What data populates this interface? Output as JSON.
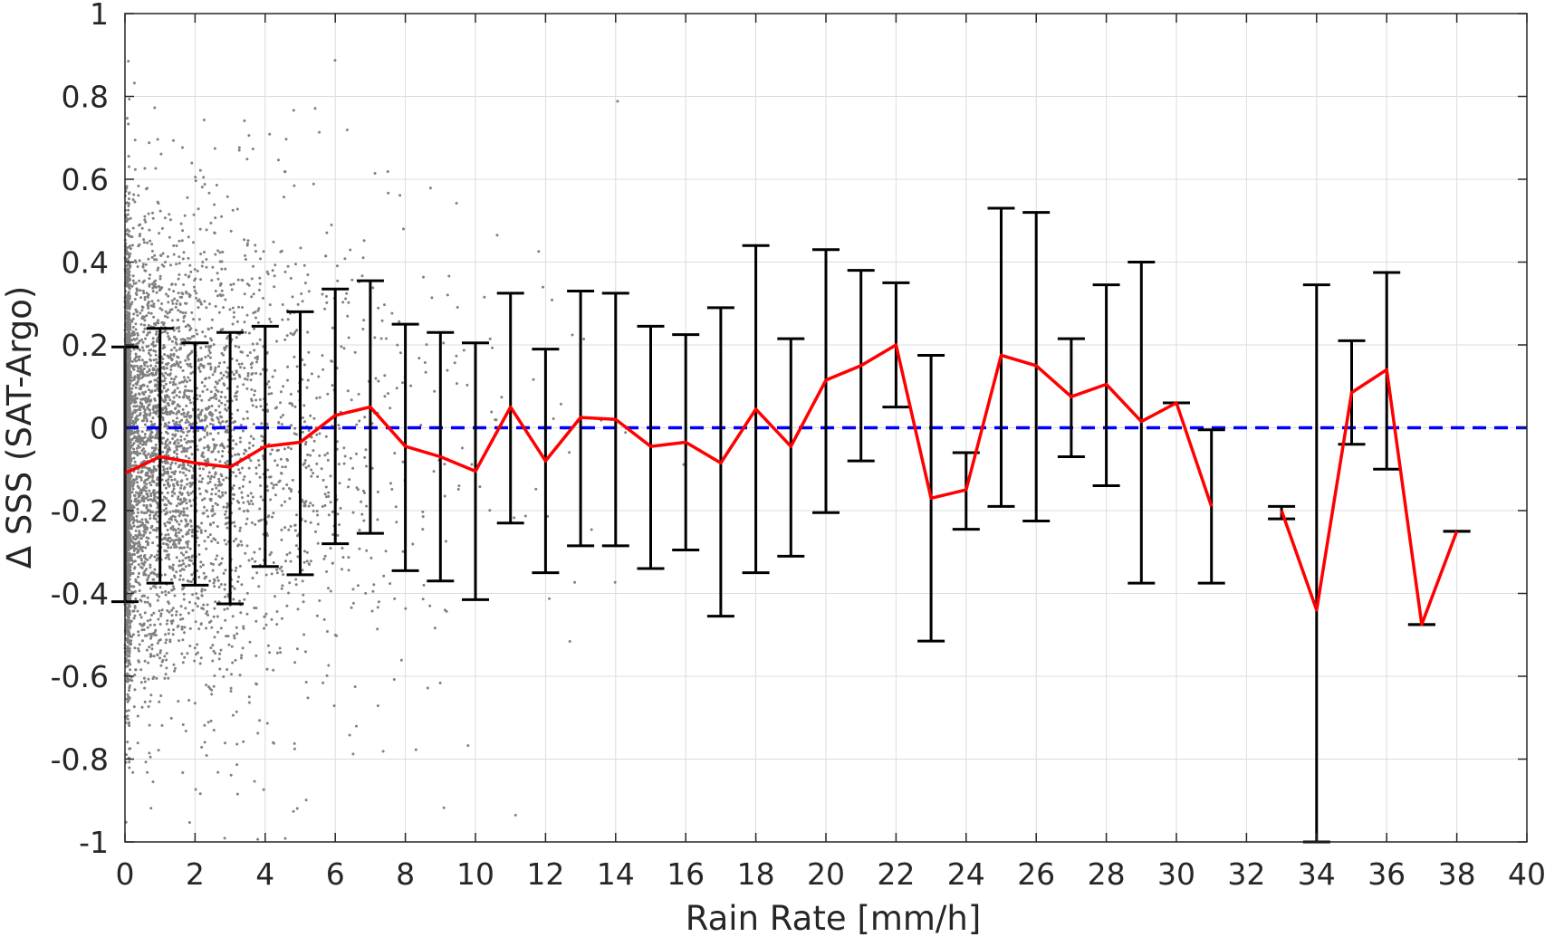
{
  "chart_data": {
    "type": "scatter",
    "xlabel": "Rain Rate [mm/h]",
    "ylabel": "Δ SSS (SAT-Argo)",
    "xlim": [
      0,
      40
    ],
    "ylim": [
      -1,
      1
    ],
    "xticks": [
      0,
      2,
      4,
      6,
      8,
      10,
      12,
      14,
      16,
      18,
      20,
      22,
      24,
      26,
      28,
      30,
      32,
      34,
      36,
      38,
      40
    ],
    "yticks": [
      -1,
      -0.8,
      -0.6,
      -0.4,
      -0.2,
      0,
      0.2,
      0.4,
      0.6,
      0.8,
      1
    ],
    "xtick_labels": [
      "0",
      "2",
      "4",
      "6",
      "8",
      "10",
      "12",
      "14",
      "16",
      "18",
      "20",
      "22",
      "24",
      "26",
      "28",
      "30",
      "32",
      "34",
      "36",
      "38",
      "40"
    ],
    "ytick_labels": [
      "-1",
      "-0.8",
      "-0.6",
      "-0.4",
      "-0.2",
      "0",
      "0.2",
      "0.4",
      "0.6",
      "0.8",
      "1"
    ],
    "grid": true,
    "reference_line": {
      "y": 0,
      "style": "dashed",
      "color": "#0000ff"
    },
    "scatter_color": "#808080",
    "mean_color": "#ff0000",
    "errorbar_color": "#000000",
    "binned": {
      "x": [
        0,
        1,
        2,
        3,
        4,
        5,
        6,
        7,
        8,
        9,
        10,
        11,
        12,
        13,
        14,
        15,
        16,
        17,
        18,
        19,
        20,
        21,
        22,
        23,
        24,
        25,
        26,
        27,
        28,
        29,
        30,
        31,
        33,
        34,
        35,
        36,
        37,
        38
      ],
      "mean": [
        -0.11,
        -0.07,
        -0.085,
        -0.095,
        -0.045,
        -0.035,
        0.03,
        0.05,
        -0.045,
        -0.07,
        -0.105,
        0.05,
        -0.08,
        0.025,
        0.02,
        -0.045,
        -0.035,
        -0.085,
        0.045,
        -0.045,
        0.115,
        0.15,
        0.2,
        -0.17,
        -0.15,
        0.175,
        0.15,
        0.075,
        0.105,
        0.015,
        0.06,
        -0.19,
        -0.2,
        -0.44,
        0.085,
        0.14,
        -0.475,
        -0.25
      ],
      "upper": [
        0.195,
        0.24,
        0.205,
        0.23,
        0.245,
        0.28,
        0.335,
        0.355,
        0.25,
        0.23,
        0.205,
        0.325,
        0.19,
        0.33,
        0.325,
        0.245,
        0.225,
        0.29,
        0.44,
        0.215,
        0.43,
        0.38,
        0.35,
        0.175,
        -0.06,
        0.53,
        0.52,
        0.215,
        0.345,
        0.4,
        0.06,
        -0.005,
        -0.19,
        0.345,
        0.21,
        0.375,
        -0.475,
        -0.25
      ],
      "lower": [
        -0.42,
        -0.375,
        -0.38,
        -0.425,
        -0.335,
        -0.355,
        -0.28,
        -0.255,
        -0.345,
        -0.37,
        -0.415,
        -0.23,
        -0.35,
        -0.285,
        -0.285,
        -0.34,
        -0.295,
        -0.455,
        -0.35,
        -0.31,
        -0.205,
        -0.08,
        0.05,
        -0.515,
        -0.245,
        -0.19,
        -0.225,
        -0.07,
        -0.14,
        -0.375,
        0.06,
        -0.375,
        -0.22,
        -1.0,
        -0.04,
        -0.1,
        -0.475,
        -0.25
      ]
    }
  }
}
